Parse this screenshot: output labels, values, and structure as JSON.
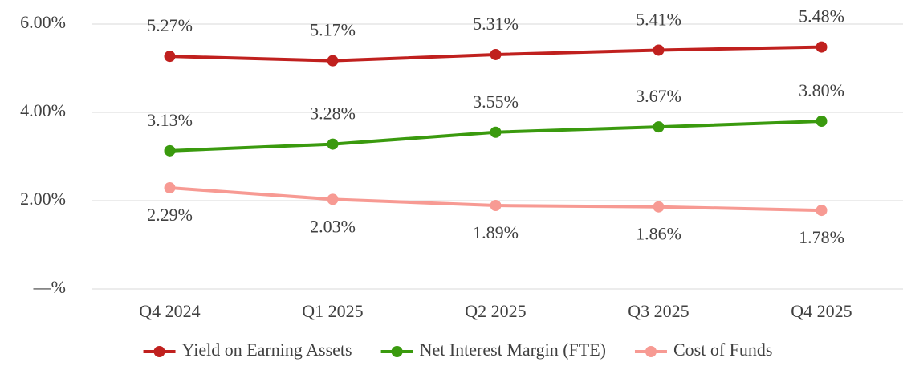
{
  "chart_data": {
    "type": "line",
    "categories": [
      "Q4 2024",
      "Q1 2025",
      "Q2 2025",
      "Q3 2025",
      "Q4 2025"
    ],
    "series": [
      {
        "name": "Yield on Earning Assets",
        "color": "#c0201e",
        "values": [
          5.27,
          5.17,
          5.31,
          5.41,
          5.48
        ],
        "value_labels": [
          "5.27%",
          "5.17%",
          "5.31%",
          "5.41%",
          "5.48%"
        ]
      },
      {
        "name": "Net Interest Margin (FTE)",
        "color": "#3a9a0e",
        "values": [
          3.13,
          3.28,
          3.55,
          3.67,
          3.8
        ],
        "value_labels": [
          "3.13%",
          "3.28%",
          "3.55%",
          "3.67%",
          "3.80%"
        ]
      },
      {
        "name": "Cost of Funds",
        "color": "#f79a93",
        "values": [
          2.29,
          2.03,
          1.89,
          1.86,
          1.78
        ],
        "value_labels": [
          "2.29%",
          "2.03%",
          "1.89%",
          "1.86%",
          "1.78%"
        ]
      }
    ],
    "ylim": [
      0,
      6
    ],
    "yticks": [
      {
        "value": 0,
        "label": "—%"
      },
      {
        "value": 2,
        "label": "2.00%"
      },
      {
        "value": 4,
        "label": "4.00%"
      },
      {
        "value": 6,
        "label": "6.00%"
      }
    ],
    "grid": true,
    "legend": "bottom"
  }
}
